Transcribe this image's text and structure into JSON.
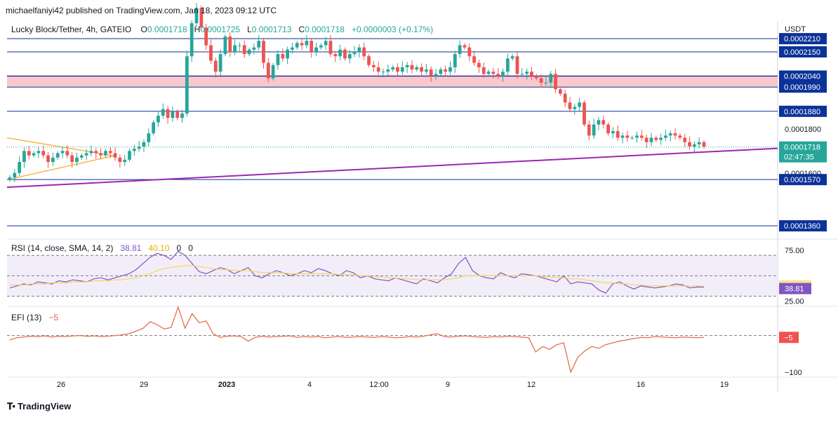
{
  "header": {
    "publisher": "michaelfaniyi42 published on TradingView.com, Jan 18, 2023 09:12 UTC"
  },
  "legend": {
    "symbol": "Lucky Block/Tether, 4h, GATEIO",
    "open_label": "O",
    "open": "0.0001718",
    "high_label": "H",
    "high": "0.0001725",
    "low_label": "L",
    "low": "0.0001713",
    "close_label": "C",
    "close": "0.0001718",
    "change": "+0.0000003 (+0.17%)"
  },
  "rsi_legend": {
    "label": "RSI (14, close, SMA, 14, 2)",
    "rsi": "38.81",
    "sma": "40.10",
    "v3": "0",
    "v4": "0"
  },
  "efi_legend": {
    "label": "EFI (13)",
    "value": "−5"
  },
  "footer": {
    "brand": "TradingView"
  },
  "colors": {
    "up": "#26a69a",
    "down": "#ef5350",
    "purple": "#9c27b0",
    "orange": "#f9a825",
    "hline": "#0c3299",
    "zone_fill": "#f8c8cc",
    "rsi_line": "#7e57c2",
    "rsi_sma": "#f6d55c",
    "efi_line": "#e4633f",
    "label_bg": "#0c3299",
    "axis_text": "#131722"
  },
  "chart_data": [
    {
      "type": "candlestick",
      "title": "Lucky Block/Tether, 4h, GATEIO",
      "currency": "USDT",
      "y_axis_ticks": [
        "0.0001800",
        "0.0001600"
      ],
      "ylim": [
        0.00013,
        0.000229
      ],
      "x_tick_labels": [
        "26",
        "29",
        "2023",
        "4",
        "12:00",
        "9",
        "12",
        "16",
        "19"
      ],
      "horizontal_levels": [
        {
          "label": "0.0002210",
          "value": 0.000221
        },
        {
          "label": "0.0002150",
          "value": 0.000215
        },
        {
          "label": "0.0002040",
          "value": 0.000204
        },
        {
          "label": "0.0001990",
          "value": 0.000199
        },
        {
          "label": "0.0001880",
          "value": 0.000188
        },
        {
          "label": "0.0001570",
          "value": 0.000157
        },
        {
          "label": "0.0001360",
          "value": 0.000136
        }
      ],
      "supply_zone": [
        0.000199,
        0.000204
      ],
      "current_price": {
        "label": "0.0001718",
        "countdown": "02:47:35",
        "value": 0.0001718
      },
      "closes_approx": [
        0.000158,
        0.00016,
        0.000165,
        0.00017,
        0.000168,
        0.000169,
        0.00017,
        0.000168,
        0.000165,
        0.000167,
        0.000169,
        0.00017,
        0.000168,
        0.000165,
        0.000167,
        0.000168,
        0.000169,
        0.00017,
        0.000169,
        0.000168,
        0.00017,
        0.000169,
        0.000167,
        0.000165,
        0.000166,
        0.00017,
        0.000171,
        0.000172,
        0.000174,
        0.000178,
        0.000183,
        0.000186,
        0.000189,
        0.000185,
        0.000188,
        0.000185,
        0.000187,
        0.000213,
        0.000228,
        0.000235,
        0.000226,
        0.000218,
        0.000211,
        0.000206,
        0.000214,
        0.000222,
        0.000215,
        0.000218,
        0.000218,
        0.000214,
        0.000216,
        0.000217,
        0.00022,
        0.00021,
        0.000203,
        0.000209,
        0.000214,
        0.000212,
        0.000216,
        0.000217,
        0.000219,
        0.000218,
        0.00022,
        0.000215,
        0.000217,
        0.000218,
        0.00022,
        0.000214,
        0.000213,
        0.000216,
        0.000212,
        0.000214,
        0.000215,
        0.000217,
        0.000213,
        0.000209,
        0.000208,
        0.000206,
        0.000206,
        0.000207,
        0.000208,
        0.000206,
        0.000208,
        0.000209,
        0.000207,
        0.000208,
        0.000206,
        0.000207,
        0.000204,
        0.000205,
        0.000207,
        0.000206,
        0.000208,
        0.000214,
        0.000218,
        0.000217,
        0.000213,
        0.00021,
        0.000208,
        0.000205,
        0.000206,
        0.000205,
        0.000204,
        0.000206,
        0.000212,
        0.000213,
        0.000205,
        0.000205,
        0.000206,
        0.000204,
        0.000203,
        0.000201,
        0.000201,
        0.000205,
        0.000198,
        0.000196,
        0.000192,
        0.000189,
        0.00019,
        0.000192,
        0.000182,
        0.000177,
        0.000182,
        0.000184,
        0.000182,
        0.000178,
        0.000179,
        0.000176,
        0.000177,
        0.000176,
        0.000176,
        0.000177,
        0.000176,
        0.000174,
        0.000176,
        0.000175,
        0.000176,
        0.000177,
        0.000178,
        0.000177,
        0.000176,
        0.000174,
        0.000172,
        0.000173,
        0.000174,
        0.000172
      ]
    },
    {
      "type": "line",
      "title": "RSI (14, close, SMA, 14, 2)",
      "y_axis_ticks": [
        "75.00",
        "25.00"
      ],
      "bands": [
        70,
        50,
        30
      ],
      "ylim": [
        20,
        86
      ],
      "last_values": {
        "rsi": "38.81",
        "sma": "40.10"
      },
      "series": [
        {
          "name": "RSI",
          "values": [
            38,
            40,
            42,
            41,
            44,
            43,
            42,
            45,
            44,
            46,
            45,
            44,
            47,
            48,
            46,
            48,
            50,
            52,
            56,
            62,
            68,
            72,
            70,
            66,
            74,
            70,
            62,
            54,
            52,
            55,
            58,
            56,
            52,
            55,
            58,
            50,
            48,
            52,
            55,
            53,
            50,
            52,
            55,
            53,
            57,
            55,
            52,
            50,
            55,
            53,
            48,
            50,
            47,
            46,
            45,
            48,
            46,
            44,
            42,
            47,
            45,
            43,
            48,
            52,
            62,
            68,
            55,
            50,
            48,
            47,
            53,
            50,
            48,
            52,
            51,
            50,
            48,
            46,
            44,
            50,
            42,
            44,
            43,
            42,
            36,
            33,
            42,
            44,
            40,
            37,
            40,
            39,
            38,
            39,
            40,
            42,
            41,
            38,
            39,
            38.81
          ]
        },
        {
          "name": "RSI-based MA",
          "values": [
            41,
            41,
            41,
            42,
            42,
            42,
            43,
            43,
            43,
            44,
            44,
            44,
            45,
            45,
            45,
            46,
            46,
            47,
            48,
            50,
            52,
            55,
            57,
            58,
            59,
            60,
            60,
            59,
            58,
            57,
            56,
            56,
            55,
            55,
            55,
            54,
            53,
            53,
            53,
            53,
            52,
            52,
            52,
            52,
            52,
            52,
            52,
            51,
            51,
            51,
            50,
            50,
            49,
            49,
            48,
            48,
            47,
            47,
            46,
            46,
            46,
            46,
            46,
            47,
            48,
            50,
            50,
            50,
            50,
            50,
            50,
            50,
            50,
            50,
            50,
            50,
            49,
            49,
            48,
            48,
            47,
            47,
            46,
            45,
            44,
            43,
            43,
            42,
            42,
            41,
            41,
            40,
            40,
            40,
            40,
            40,
            40,
            40,
            40,
            40.1
          ]
        }
      ]
    },
    {
      "type": "line",
      "title": "EFI (13)",
      "y_axis_ticks": [
        "−100"
      ],
      "ylim": [
        -110,
        80
      ],
      "zero_line": 0,
      "last_value_label": "−5",
      "series": [
        {
          "name": "EFI",
          "values": [
            -12,
            -6,
            -4,
            -2,
            -3,
            -1,
            -4,
            -2,
            -3,
            -1,
            0,
            -2,
            -1,
            -3,
            -2,
            0,
            2,
            5,
            12,
            20,
            38,
            30,
            18,
            22,
            78,
            20,
            60,
            35,
            40,
            5,
            -5,
            -2,
            -1,
            -3,
            -15,
            -5,
            -2,
            -4,
            -3,
            -2,
            -1,
            -5,
            -3,
            -4,
            -3,
            -6,
            -4,
            -3,
            -5,
            -4,
            -3,
            -4,
            -5,
            -3,
            -4,
            -6,
            -5,
            -3,
            -4,
            -2,
            2,
            5,
            -3,
            -4,
            -2,
            -1,
            -3,
            -4,
            -5,
            -3,
            -4,
            -2,
            -3,
            -4,
            -6,
            -45,
            -30,
            -38,
            -25,
            -20,
            -100,
            -60,
            -42,
            -30,
            -35,
            -25,
            -20,
            -15,
            -12,
            -8,
            -5,
            -6,
            -3,
            -4,
            -5,
            -6,
            -4,
            -5,
            -6,
            -5
          ]
        }
      ]
    }
  ]
}
